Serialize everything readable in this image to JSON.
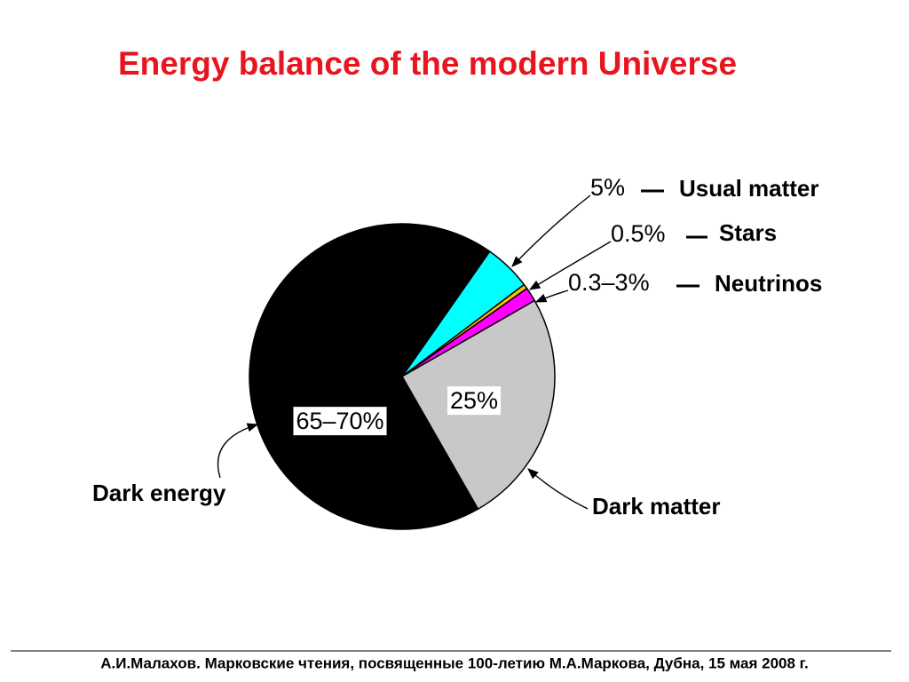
{
  "chart_data": {
    "type": "pie",
    "title": "Energy balance of the modern Universe",
    "categories": [
      "Usual matter",
      "Stars",
      "Neutrinos",
      "Dark matter",
      "Dark energy"
    ],
    "values": [
      5,
      0.5,
      1.5,
      25,
      68
    ],
    "value_labels": [
      "5%",
      "0.5%",
      "0.3–3%",
      "25%",
      "65–70%"
    ],
    "colors": [
      "#00ffff",
      "#ffc000",
      "#ff00ff",
      "#c8c8c8",
      "#000000"
    ]
  },
  "footer": "А.И.Малахов. Марковские чтения, посвященные 100-летию М.А.Маркова, Дубна, 15 мая 2008 г."
}
